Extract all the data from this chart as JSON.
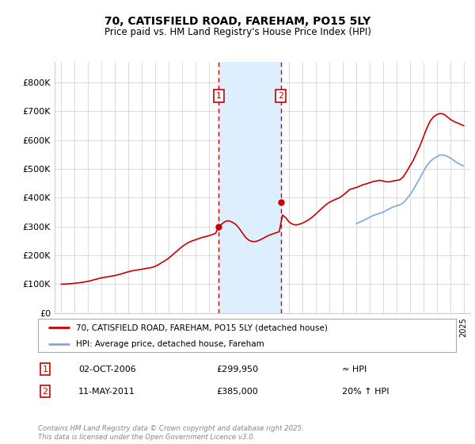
{
  "title": "70, CATISFIELD ROAD, FAREHAM, PO15 5LY",
  "subtitle": "Price paid vs. HM Land Registry's House Price Index (HPI)",
  "ylabel_ticks": [
    "£0",
    "£100K",
    "£200K",
    "£300K",
    "£400K",
    "£500K",
    "£600K",
    "£700K",
    "£800K"
  ],
  "ytick_values": [
    0,
    100000,
    200000,
    300000,
    400000,
    500000,
    600000,
    700000,
    800000
  ],
  "ylim": [
    0,
    870000
  ],
  "xlim_start": 1994.5,
  "xlim_end": 2025.5,
  "transaction1_date": 2006.75,
  "transaction1_price": 299950,
  "transaction2_date": 2011.36,
  "transaction2_price": 385000,
  "red_line_color": "#cc0000",
  "blue_line_color": "#7aaadd",
  "shaded_region_color": "#ddeeff",
  "grid_color": "#cccccc",
  "background_color": "#ffffff",
  "legend1_label": "70, CATISFIELD ROAD, FAREHAM, PO15 5LY (detached house)",
  "legend2_label": "HPI: Average price, detached house, Fareham",
  "table_row1": [
    "1",
    "02-OCT-2006",
    "£299,950",
    "≈ HPI"
  ],
  "table_row2": [
    "2",
    "11-MAY-2011",
    "£385,000",
    "20% ↑ HPI"
  ],
  "footer": "Contains HM Land Registry data © Crown copyright and database right 2025.\nThis data is licensed under the Open Government Licence v3.0.",
  "hpi_red_x": [
    1995.0,
    1995.25,
    1995.5,
    1995.75,
    1996.0,
    1996.25,
    1996.5,
    1996.75,
    1997.0,
    1997.25,
    1997.5,
    1997.75,
    1998.0,
    1998.25,
    1998.5,
    1998.75,
    1999.0,
    1999.25,
    1999.5,
    1999.75,
    2000.0,
    2000.25,
    2000.5,
    2000.75,
    2001.0,
    2001.25,
    2001.5,
    2001.75,
    2002.0,
    2002.25,
    2002.5,
    2002.75,
    2003.0,
    2003.25,
    2003.5,
    2003.75,
    2004.0,
    2004.25,
    2004.5,
    2004.75,
    2005.0,
    2005.25,
    2005.5,
    2005.75,
    2006.0,
    2006.25,
    2006.5,
    2006.75,
    2007.0,
    2007.25,
    2007.5,
    2007.75,
    2008.0,
    2008.25,
    2008.5,
    2008.75,
    2009.0,
    2009.25,
    2009.5,
    2009.75,
    2010.0,
    2010.25,
    2010.5,
    2010.75,
    2011.0,
    2011.25,
    2011.5,
    2011.75,
    2012.0,
    2012.25,
    2012.5,
    2012.75,
    2013.0,
    2013.25,
    2013.5,
    2013.75,
    2014.0,
    2014.25,
    2014.5,
    2014.75,
    2015.0,
    2015.25,
    2015.5,
    2015.75,
    2016.0,
    2016.25,
    2016.5,
    2016.75,
    2017.0,
    2017.25,
    2017.5,
    2017.75,
    2018.0,
    2018.25,
    2018.5,
    2018.75,
    2019.0,
    2019.25,
    2019.5,
    2019.75,
    2020.0,
    2020.25,
    2020.5,
    2020.75,
    2021.0,
    2021.25,
    2021.5,
    2021.75,
    2022.0,
    2022.25,
    2022.5,
    2022.75,
    2023.0,
    2023.25,
    2023.5,
    2023.75,
    2024.0,
    2024.25,
    2024.5,
    2024.75,
    2025.0
  ],
  "hpi_red_y": [
    100000,
    100500,
    101000,
    102000,
    103000,
    104500,
    106000,
    108000,
    110000,
    113000,
    116000,
    119000,
    122000,
    124000,
    126000,
    128000,
    130000,
    133000,
    136000,
    140000,
    143000,
    146000,
    148000,
    150000,
    152000,
    154000,
    156000,
    158000,
    162000,
    168000,
    175000,
    182000,
    190000,
    200000,
    210000,
    220000,
    230000,
    238000,
    245000,
    250000,
    254000,
    258000,
    262000,
    265000,
    268000,
    272000,
    276000,
    300000,
    310000,
    318000,
    320000,
    315000,
    308000,
    295000,
    278000,
    262000,
    252000,
    248000,
    248000,
    252000,
    258000,
    264000,
    270000,
    274000,
    278000,
    282000,
    340000,
    330000,
    315000,
    308000,
    305000,
    308000,
    312000,
    318000,
    325000,
    334000,
    344000,
    355000,
    366000,
    376000,
    384000,
    390000,
    395000,
    400000,
    408000,
    418000,
    428000,
    432000,
    435000,
    440000,
    445000,
    448000,
    452000,
    456000,
    458000,
    460000,
    458000,
    455000,
    455000,
    458000,
    460000,
    462000,
    472000,
    490000,
    510000,
    530000,
    555000,
    580000,
    610000,
    640000,
    665000,
    680000,
    688000,
    692000,
    690000,
    682000,
    672000,
    665000,
    660000,
    655000,
    650000
  ],
  "hpi_blue_x": [
    2017.0,
    2017.25,
    2017.5,
    2017.75,
    2018.0,
    2018.25,
    2018.5,
    2018.75,
    2019.0,
    2019.25,
    2019.5,
    2019.75,
    2020.0,
    2020.25,
    2020.5,
    2020.75,
    2021.0,
    2021.25,
    2021.5,
    2021.75,
    2022.0,
    2022.25,
    2022.5,
    2022.75,
    2023.0,
    2023.25,
    2023.5,
    2023.75,
    2024.0,
    2024.25,
    2024.5,
    2024.75,
    2025.0
  ],
  "hpi_blue_y": [
    310000,
    315000,
    320000,
    326000,
    332000,
    338000,
    342000,
    346000,
    350000,
    356000,
    362000,
    368000,
    372000,
    375000,
    382000,
    395000,
    410000,
    428000,
    448000,
    468000,
    490000,
    510000,
    525000,
    535000,
    542000,
    548000,
    548000,
    544000,
    538000,
    530000,
    522000,
    515000,
    510000
  ]
}
